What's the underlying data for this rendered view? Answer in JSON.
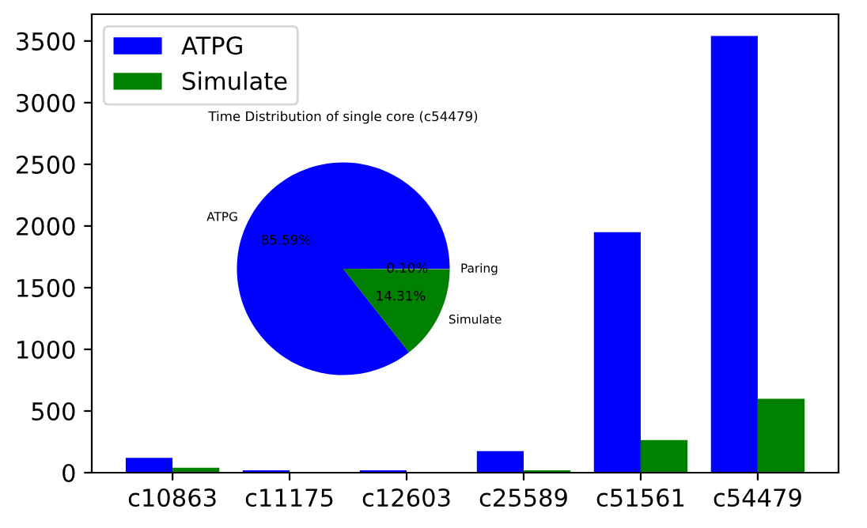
{
  "chart_data": [
    {
      "type": "bar",
      "categories": [
        "c10863",
        "c11175",
        "c12603",
        "c25589",
        "c51561",
        "c54479"
      ],
      "series": [
        {
          "name": "ATPG",
          "color": "#0000ff",
          "values": [
            120,
            20,
            20,
            175,
            1950,
            3540
          ]
        },
        {
          "name": "Simulate",
          "color": "#008000",
          "values": [
            40,
            null,
            null,
            20,
            265,
            600
          ]
        }
      ],
      "ylim": [
        0,
        3717
      ],
      "yticks": [
        0,
        500,
        1000,
        1500,
        2000,
        2500,
        3000,
        3500
      ],
      "legend": "top left",
      "grid": false
    },
    {
      "type": "pie",
      "title": "Time Distribution of single core (c54479)",
      "categories": [
        "ATPG",
        "Simulate",
        "Paring"
      ],
      "values": [
        85.59,
        14.31,
        0.1
      ],
      "colors": [
        "#0000ff",
        "#008000",
        "#808080"
      ],
      "value_labels": [
        "85.59%",
        "14.31%",
        "0.10%"
      ]
    }
  ]
}
